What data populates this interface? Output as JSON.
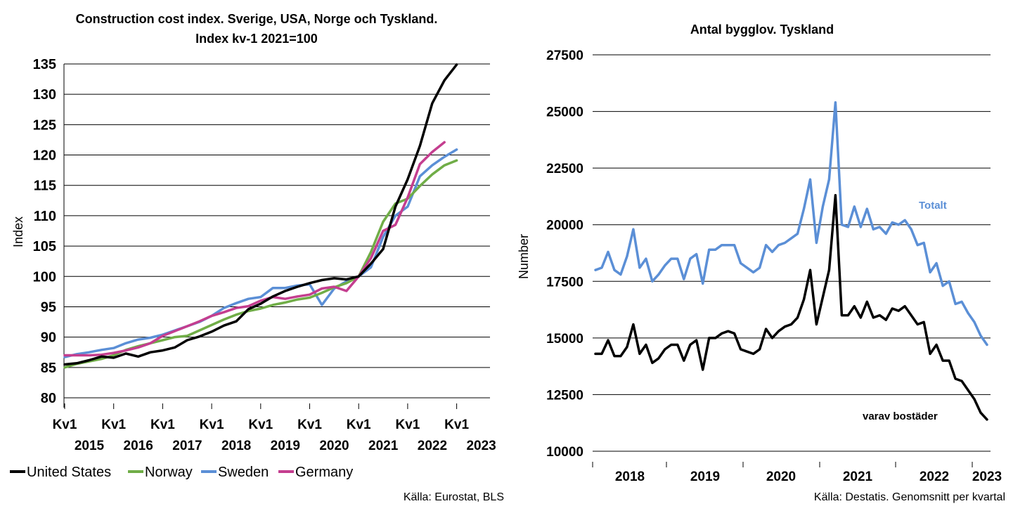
{
  "chart_data": [
    {
      "type": "line",
      "title": "Construction cost index. Sverige, USA, Norge och Tyskland.",
      "subtitle": "Index kv-1 2021=100",
      "ylabel": "Index",
      "ylim": [
        80,
        135
      ],
      "yticks": [
        "135",
        "130",
        "125",
        "120",
        "115",
        "110",
        "105",
        "100",
        "95",
        "90",
        "85",
        "80"
      ],
      "xticks": [
        {
          "top": "Kv1",
          "bottom": "2015"
        },
        {
          "top": "Kv1",
          "bottom": "2016"
        },
        {
          "top": "Kv1",
          "bottom": "2017"
        },
        {
          "top": "Kv1",
          "bottom": "2018"
        },
        {
          "top": "Kv1",
          "bottom": "2019"
        },
        {
          "top": "Kv1",
          "bottom": "2020"
        },
        {
          "top": "Kv1",
          "bottom": "2021"
        },
        {
          "top": "Kv1",
          "bottom": "2022"
        },
        {
          "top": "Kv1",
          "bottom": "2023"
        }
      ],
      "x_start": 2015.0,
      "x_step": 0.25,
      "grid": "horizontal",
      "legend_placement": "bottom",
      "source": "Källa: Eurostat, BLS",
      "series": [
        {
          "name": "United States",
          "color": "#000000",
          "values": [
            85.5,
            85.7,
            86.2,
            86.8,
            86.6,
            87.3,
            86.8,
            87.5,
            87.8,
            88.3,
            89.5,
            90.1,
            90.9,
            91.9,
            92.6,
            94.6,
            95.5,
            96.7,
            97.6,
            98.3,
            98.9,
            99.4,
            99.7,
            99.5,
            100.0,
            102.1,
            104.5,
            111.5,
            116.0,
            121.5,
            128.5,
            132.3,
            134.9
          ]
        },
        {
          "name": "Norway",
          "color": "#70AD47",
          "values": [
            85.0,
            85.6,
            86.0,
            86.4,
            87.0,
            87.9,
            88.5,
            89.0,
            89.5,
            90.0,
            90.2,
            91.1,
            92.0,
            92.9,
            93.7,
            94.3,
            94.7,
            95.3,
            95.7,
            96.2,
            96.5,
            97.3,
            98.2,
            98.9,
            100.0,
            104.0,
            109.0,
            112.0,
            112.8,
            114.9,
            116.8,
            118.3,
            119.1
          ]
        },
        {
          "name": "Sweden",
          "color": "#5B8FD6",
          "values": [
            86.7,
            87.2,
            87.5,
            87.9,
            88.2,
            89.0,
            89.6,
            89.9,
            90.4,
            91.1,
            91.8,
            92.5,
            93.5,
            94.8,
            95.6,
            96.3,
            96.6,
            98.1,
            98.1,
            98.5,
            98.7,
            95.3,
            98.0,
            99.2,
            100.0,
            101.5,
            106.5,
            110.0,
            111.5,
            116.5,
            118.3,
            119.7,
            120.9
          ]
        },
        {
          "name": "Germany",
          "color": "#C43E8F",
          "values": [
            87.0,
            87.0,
            87.0,
            87.1,
            87.4,
            87.8,
            88.3,
            89.0,
            90.2,
            91.0,
            91.8,
            92.6,
            93.5,
            94.1,
            94.8,
            95.1,
            96.0,
            96.6,
            96.3,
            96.7,
            97.0,
            98.0,
            98.3,
            97.6,
            100.0,
            103.0,
            107.5,
            108.5,
            113.0,
            118.5,
            120.5,
            122.1
          ]
        }
      ]
    },
    {
      "type": "line",
      "title": "Antal bygglov. Tyskland",
      "ylabel": "Number",
      "ylim": [
        10000,
        27500
      ],
      "yticks": [
        "27500",
        "25000",
        "22500",
        "20000",
        "17500",
        "15000",
        "12500",
        "10000"
      ],
      "xticks": [
        "2018",
        "2019",
        "2020",
        "2021",
        "2022",
        "2023"
      ],
      "x_start": 2017.5,
      "x_step": 0.0833333,
      "grid": "horizontal",
      "source": "Källa: Destatis. Genomsnitt per kvartal",
      "series": [
        {
          "name": "Totalt",
          "color": "#5B8FD6",
          "values": [
            18000,
            18100,
            18800,
            18000,
            17800,
            18600,
            19800,
            18100,
            18500,
            17500,
            17800,
            18200,
            18500,
            18500,
            17600,
            18500,
            18700,
            17400,
            18900,
            18900,
            19100,
            19100,
            19100,
            18300,
            18100,
            17900,
            18100,
            19100,
            18800,
            19100,
            19200,
            19400,
            19600,
            20700,
            22000,
            19200,
            20800,
            22000,
            25400,
            20000,
            19900,
            20800,
            19900,
            20700,
            19800,
            19900,
            19600,
            20100,
            20000,
            20200,
            19800,
            19100,
            19200,
            17900,
            18300,
            17300,
            17500,
            16500,
            16600,
            16100,
            15700,
            15100,
            14700
          ]
        },
        {
          "name": "varav bostäder",
          "color": "#000000",
          "values": [
            14300,
            14300,
            14900,
            14200,
            14200,
            14600,
            15600,
            14300,
            14700,
            13900,
            14100,
            14500,
            14700,
            14700,
            14000,
            14700,
            14900,
            13600,
            15000,
            15000,
            15200,
            15300,
            15200,
            14500,
            14400,
            14300,
            14500,
            15400,
            15000,
            15300,
            15500,
            15600,
            15900,
            16700,
            18000,
            15600,
            16800,
            18000,
            21300,
            16000,
            16000,
            16400,
            15900,
            16600,
            15900,
            16000,
            15800,
            16300,
            16200,
            16400,
            16000,
            15600,
            15700,
            14300,
            14700,
            14000,
            14000,
            13200,
            13100,
            12700,
            12300,
            11700,
            11400
          ]
        }
      ]
    }
  ]
}
